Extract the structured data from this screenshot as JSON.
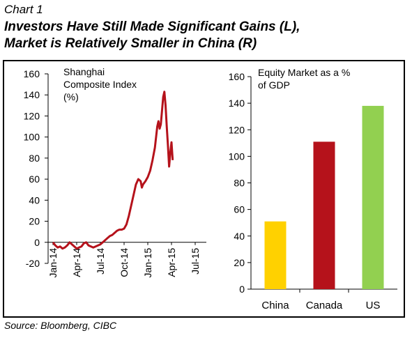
{
  "header": {
    "chart_number": "Chart 1",
    "title_line1": "Investors Have Still Made Significant Gains (L),",
    "title_line2": "Market is Relatively Smaller in China (R)"
  },
  "footer": {
    "source": "Source: Bloomberg, CIBC"
  },
  "colors": {
    "line": "#B5121B",
    "china": "#FFD100",
    "canada": "#B5121B",
    "us": "#92D050"
  },
  "chart_data": [
    {
      "type": "line",
      "title": "Shanghai Composite Index (%)",
      "title_lines": [
        "Shanghai",
        "Composite Index",
        "(%)"
      ],
      "ylim": [
        -20,
        160
      ],
      "yticks": [
        -20,
        0,
        20,
        40,
        60,
        80,
        100,
        120,
        140,
        160
      ],
      "xlabels": [
        "Jan-14",
        "Apr-14",
        "Jul-14",
        "Oct-14",
        "Jan-15",
        "Apr-15",
        "Jul-15"
      ],
      "series": [
        {
          "points": [
            [
              0,
              0
            ],
            [
              0.1,
              -3
            ],
            [
              0.2,
              -5
            ],
            [
              0.3,
              -4
            ],
            [
              0.4,
              -6
            ],
            [
              0.5,
              -5
            ],
            [
              0.6,
              -3
            ],
            [
              0.7,
              0
            ],
            [
              0.8,
              -2
            ],
            [
              0.9,
              -4
            ],
            [
              1.0,
              -6
            ],
            [
              1.1,
              -5
            ],
            [
              1.2,
              -4
            ],
            [
              1.3,
              -1
            ],
            [
              1.4,
              0
            ],
            [
              1.5,
              -3
            ],
            [
              1.6,
              -4
            ],
            [
              1.7,
              -5
            ],
            [
              1.8,
              -4
            ],
            [
              1.9,
              -3
            ],
            [
              2.0,
              -2
            ],
            [
              2.1,
              0
            ],
            [
              2.2,
              2
            ],
            [
              2.3,
              4
            ],
            [
              2.4,
              6
            ],
            [
              2.5,
              7
            ],
            [
              2.6,
              9
            ],
            [
              2.7,
              11
            ],
            [
              2.8,
              12
            ],
            [
              2.9,
              12
            ],
            [
              3.0,
              13
            ],
            [
              3.1,
              17
            ],
            [
              3.2,
              25
            ],
            [
              3.3,
              35
            ],
            [
              3.4,
              45
            ],
            [
              3.5,
              55
            ],
            [
              3.6,
              60
            ],
            [
              3.7,
              58
            ],
            [
              3.75,
              52
            ],
            [
              3.8,
              55
            ],
            [
              3.9,
              58
            ],
            [
              4.0,
              62
            ],
            [
              4.1,
              68
            ],
            [
              4.2,
              78
            ],
            [
              4.3,
              90
            ],
            [
              4.35,
              100
            ],
            [
              4.4,
              110
            ],
            [
              4.45,
              115
            ],
            [
              4.5,
              108
            ],
            [
              4.55,
              112
            ],
            [
              4.6,
              125
            ],
            [
              4.65,
              138
            ],
            [
              4.7,
              143
            ],
            [
              4.75,
              130
            ],
            [
              4.8,
              110
            ],
            [
              4.85,
              92
            ],
            [
              4.9,
              72
            ],
            [
              4.95,
              85
            ],
            [
              5.0,
              95
            ],
            [
              5.05,
              78
            ]
          ]
        }
      ]
    },
    {
      "type": "bar",
      "title": "Equity Market as a % of GDP",
      "title_lines": [
        "Equity Market as a %",
        "of GDP"
      ],
      "categories": [
        "China",
        "Canada",
        "US"
      ],
      "values": [
        51,
        111,
        138
      ],
      "ylim": [
        0,
        160
      ],
      "yticks": [
        0,
        20,
        40,
        60,
        80,
        100,
        120,
        140,
        160
      ]
    }
  ]
}
